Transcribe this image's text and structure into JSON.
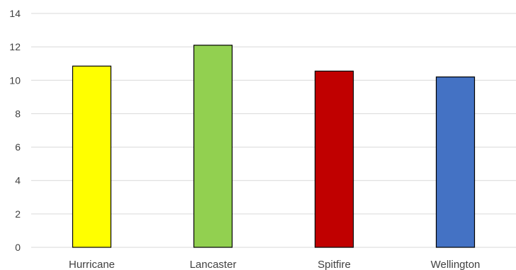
{
  "chart_data": {
    "type": "bar",
    "title": "",
    "xlabel": "",
    "ylabel": "",
    "categories": [
      "Hurricane",
      "Lancaster",
      "Spitfire",
      "Wellington"
    ],
    "values": [
      10.85,
      12.1,
      10.55,
      10.2
    ],
    "colors": [
      "#FFFF00",
      "#92D050",
      "#C00000",
      "#4472C4"
    ],
    "bar_outline": "#000000",
    "ylim": [
      0,
      14
    ],
    "yticks": [
      0,
      2,
      4,
      6,
      8,
      10,
      12,
      14
    ],
    "grid": true,
    "gridline_color": "#D9D9D9",
    "legend": "none"
  }
}
